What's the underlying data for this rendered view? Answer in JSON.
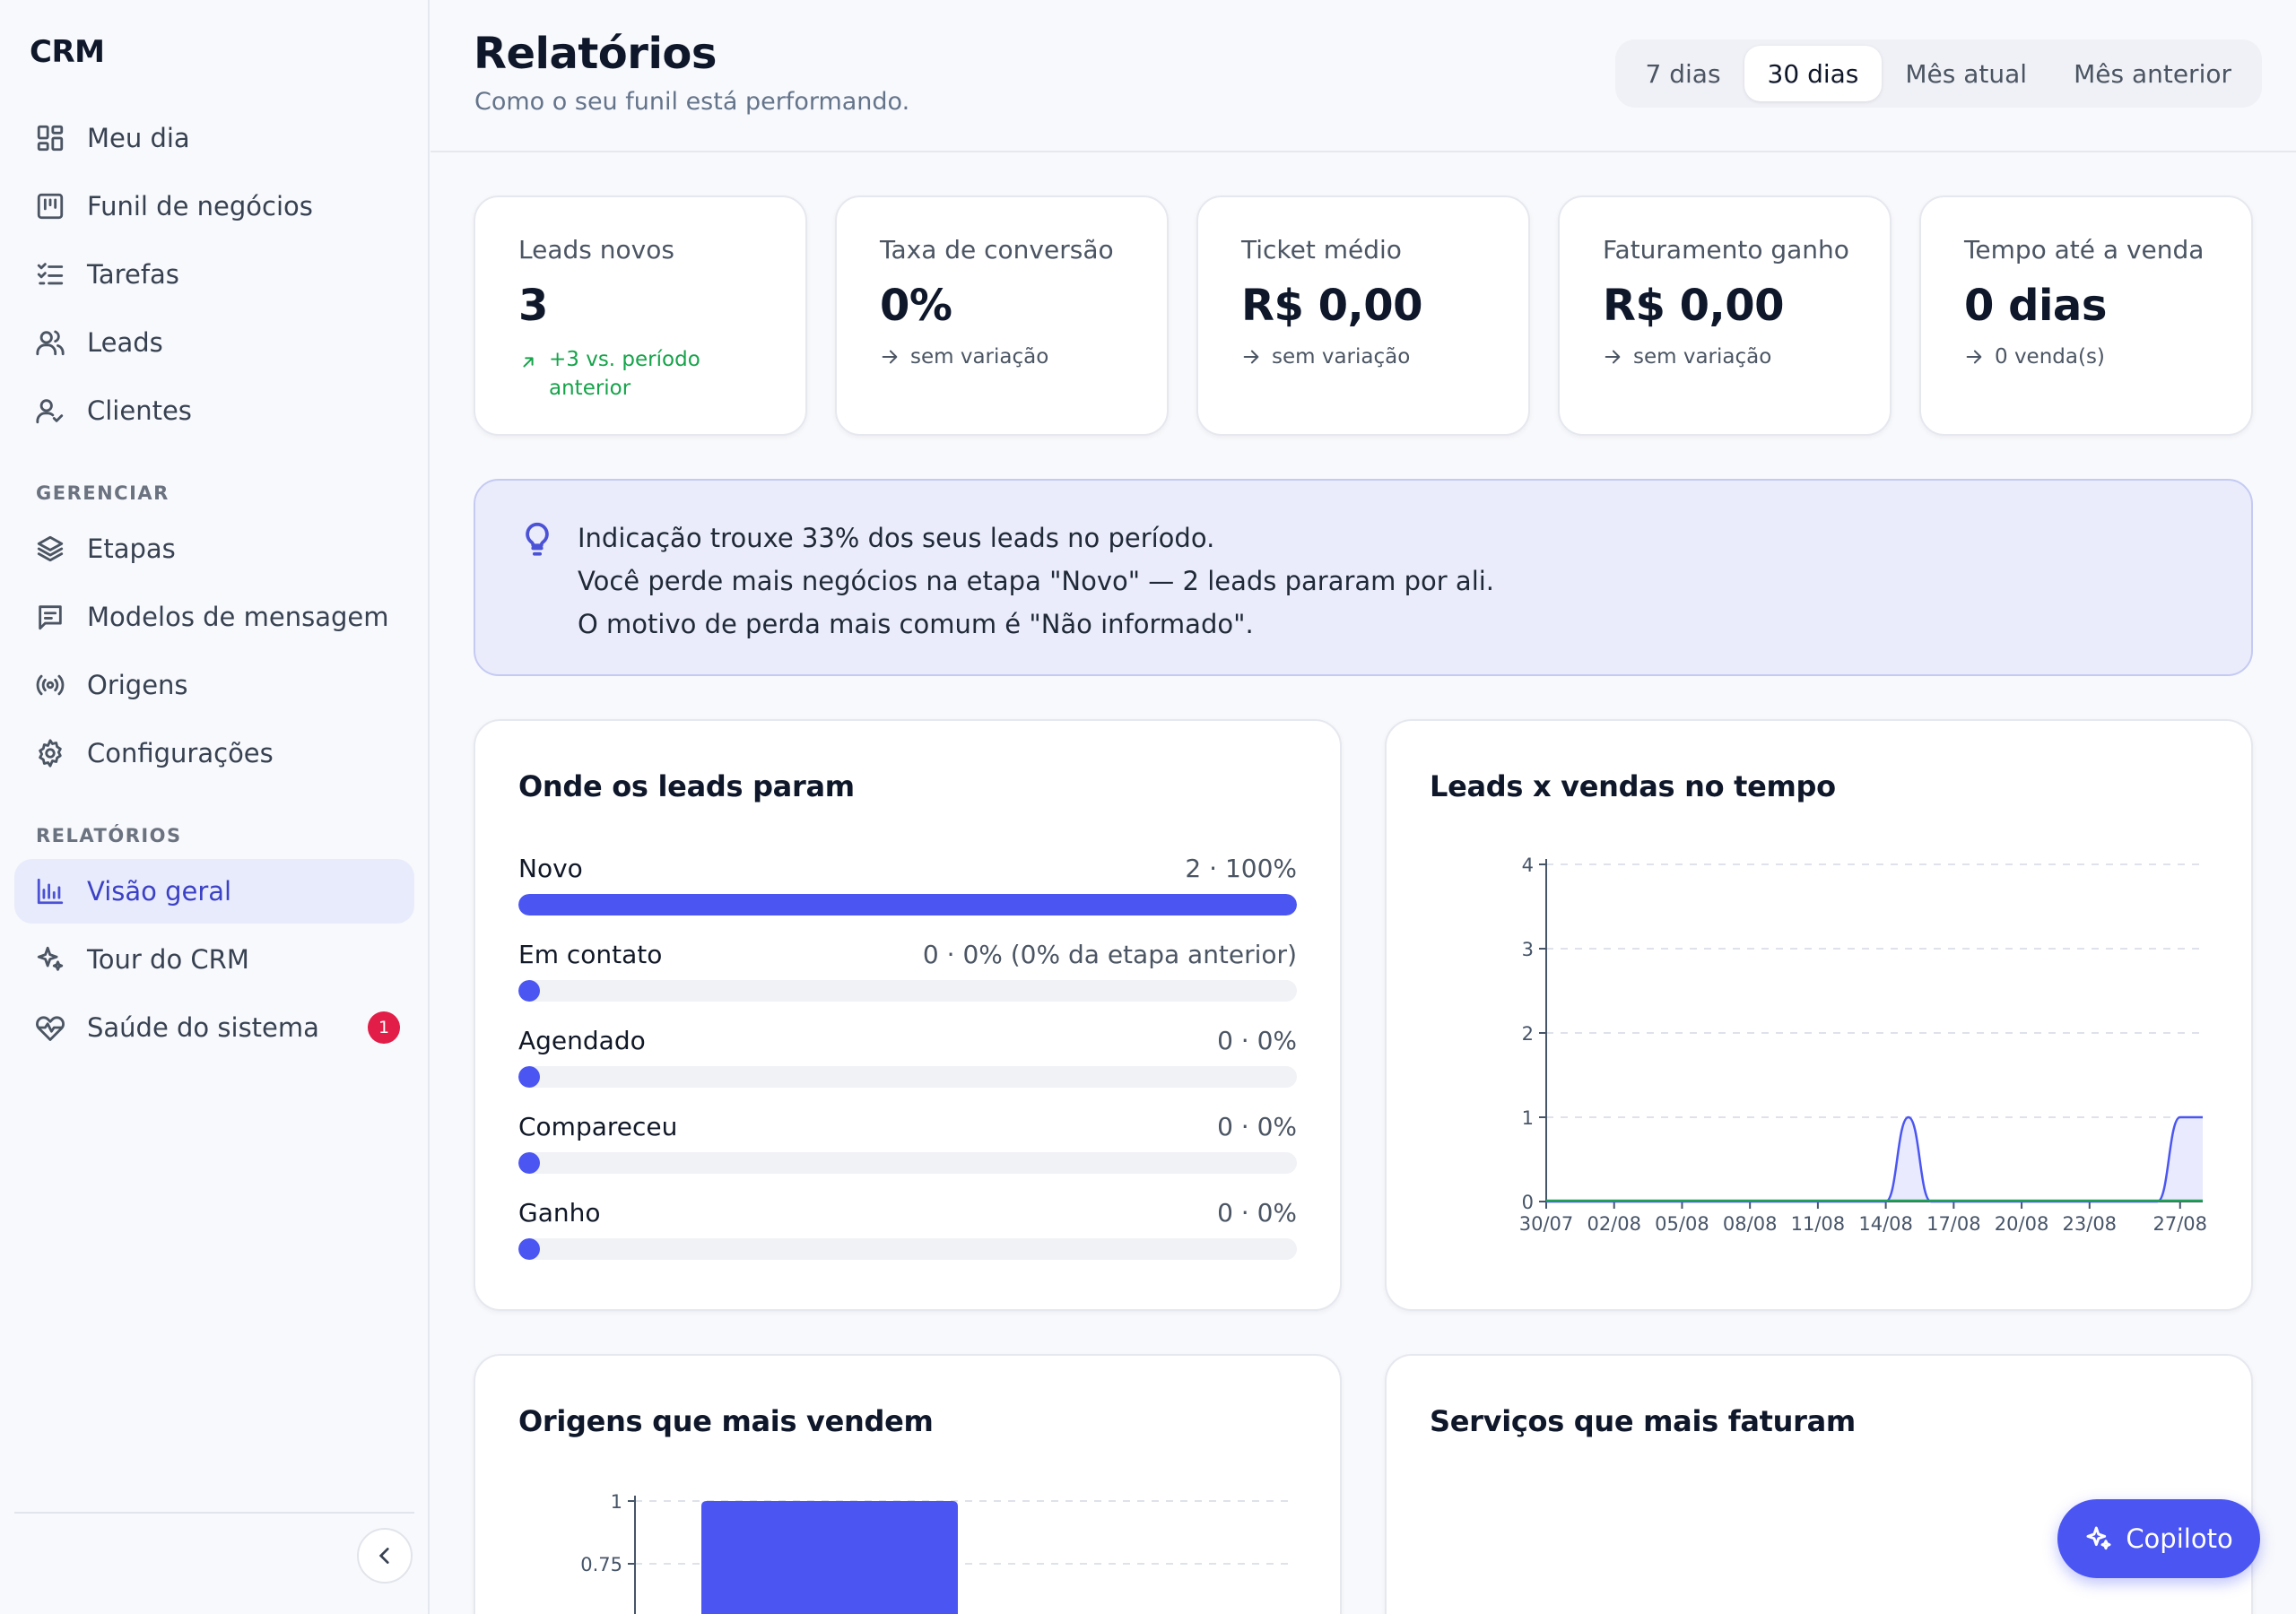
{
  "app": {
    "brand": "CRM"
  },
  "sidebar": {
    "main_items": [
      {
        "label": "Meu dia",
        "icon": "dashboard-icon"
      },
      {
        "label": "Funil de negócios",
        "icon": "kanban-icon"
      },
      {
        "label": "Tarefas",
        "icon": "tasks-icon"
      },
      {
        "label": "Leads",
        "icon": "users-icon"
      },
      {
        "label": "Clientes",
        "icon": "user-check-icon"
      }
    ],
    "manage_label": "GERENCIAR",
    "manage_items": [
      {
        "label": "Etapas",
        "icon": "layers-icon"
      },
      {
        "label": "Modelos de mensagem",
        "icon": "message-icon"
      },
      {
        "label": "Origens",
        "icon": "broadcast-icon"
      },
      {
        "label": "Configurações",
        "icon": "gear-icon"
      }
    ],
    "reports_label": "RELATÓRIOS",
    "reports_items": [
      {
        "label": "Visão geral",
        "icon": "bar-chart-icon",
        "active": true
      },
      {
        "label": "Tour do CRM",
        "icon": "sparkles-icon"
      },
      {
        "label": "Saúde do sistema",
        "icon": "heart-pulse-icon",
        "badge": "1"
      }
    ]
  },
  "header": {
    "title": "Relatórios",
    "subtitle": "Como o seu funil está performando.",
    "periods": [
      "7 dias",
      "30 dias",
      "Mês atual",
      "Mês anterior"
    ],
    "selected_period": "30 dias"
  },
  "kpis": [
    {
      "label": "Leads novos",
      "value": "3",
      "delta": "+3 vs. período anterior",
      "trend": "up"
    },
    {
      "label": "Taxa de conversão",
      "value": "0%",
      "delta": "sem variação",
      "trend": "flat"
    },
    {
      "label": "Ticket médio",
      "value": "R$ 0,00",
      "delta": "sem variação",
      "trend": "flat"
    },
    {
      "label": "Faturamento ganho",
      "value": "R$ 0,00",
      "delta": "sem variação",
      "trend": "flat"
    },
    {
      "label": "Tempo até a venda",
      "value": "0 dias",
      "delta": "0 venda(s)",
      "trend": "flat"
    }
  ],
  "insights": [
    "Indicação trouxe 33% dos seus leads no período.",
    "Você perde mais negócios na etapa \"Novo\" — 2 leads pararam por ali.",
    "O motivo de perda mais comum é \"Não informado\"."
  ],
  "funnel": {
    "title": "Onde os leads param",
    "stages": [
      {
        "name": "Novo",
        "count": "2 · 100%",
        "share": 1.0
      },
      {
        "name": "Em contato",
        "count": "0 · 0% (0% da etapa anterior)",
        "share": 0
      },
      {
        "name": "Agendado",
        "count": "0 · 0%",
        "share": 0
      },
      {
        "name": "Compareceu",
        "count": "0 · 0%",
        "share": 0
      },
      {
        "name": "Ganho",
        "count": "0 · 0%",
        "share": 0
      }
    ]
  },
  "colors": {
    "accent": "#4b56f2",
    "sales_line": "#22a05a",
    "badge": "#e11d48",
    "insight_bg": "#eaecfb"
  },
  "chart_data": [
    {
      "type": "area",
      "title": "Leads x vendas no tempo",
      "x_ticks": [
        "30/07",
        "02/08",
        "05/08",
        "08/08",
        "11/08",
        "14/08",
        "17/08",
        "20/08",
        "23/08",
        "27/08"
      ],
      "ylim": [
        0,
        4
      ],
      "y_ticks": [
        0,
        1,
        2,
        3,
        4
      ],
      "grid": true,
      "series": [
        {
          "values": [
            [
              0,
              0
            ],
            [
              1,
              0
            ],
            [
              2,
              0
            ],
            [
              3,
              0
            ],
            [
              4,
              0
            ],
            [
              5,
              0
            ],
            [
              6,
              0
            ],
            [
              7,
              0
            ],
            [
              8,
              0
            ],
            [
              9,
              0
            ],
            [
              10,
              0
            ],
            [
              11,
              0
            ],
            [
              12,
              0
            ],
            [
              13,
              0
            ],
            [
              14,
              0
            ],
            [
              15,
              0
            ],
            [
              16,
              1
            ],
            [
              17,
              0
            ],
            [
              18,
              0
            ],
            [
              19,
              0
            ],
            [
              20,
              0
            ],
            [
              21,
              0
            ],
            [
              22,
              0
            ],
            [
              23,
              0
            ],
            [
              24,
              0
            ],
            [
              25,
              0
            ],
            [
              26,
              0
            ],
            [
              27,
              0
            ],
            [
              28,
              1
            ],
            [
              29,
              1
            ]
          ]
        },
        {
          "values": [
            [
              0,
              0
            ],
            [
              29,
              0
            ]
          ]
        }
      ]
    },
    {
      "type": "bar",
      "title": "Origens que mais vendem",
      "ylim": [
        0,
        1
      ],
      "y_ticks": [
        0.75,
        1
      ],
      "grid": true,
      "values": [
        1
      ]
    }
  ],
  "services": {
    "title": "Serviços que mais faturam"
  },
  "copilot": {
    "label": "Copiloto"
  }
}
